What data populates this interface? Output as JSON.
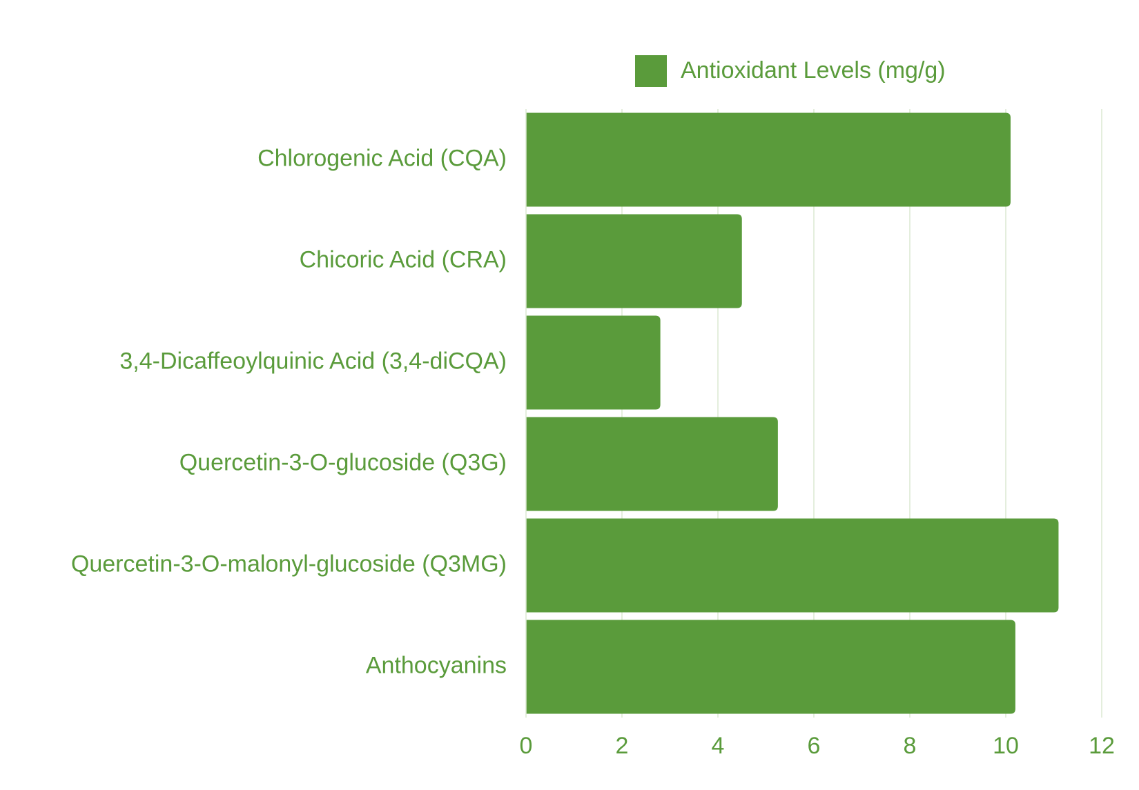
{
  "chart_data": {
    "type": "bar",
    "orientation": "horizontal",
    "categories": [
      "Chlorogenic Acid (CQA)",
      "Chicoric Acid (CRA)",
      "3,4-Dicaffeoylquinic Acid (3,4-diCQA)",
      "Quercetin-3-O-glucoside (Q3G)",
      "Quercetin-3-O-malonyl-glucoside (Q3MG)",
      "Anthocyanins"
    ],
    "series": [
      {
        "name": "Antioxidant Levels (mg/g)",
        "color": "#5a9b3b",
        "values": [
          10.1,
          4.5,
          2.8,
          5.25,
          11.1,
          10.2
        ]
      }
    ],
    "xlim": [
      0,
      12
    ],
    "xticks": [
      "0",
      "2",
      "4",
      "6",
      "8",
      "10",
      "12"
    ],
    "grid": true,
    "legend_position": "top",
    "label_color": "#5a9b3b",
    "grid_color": "#dbe8d2"
  }
}
